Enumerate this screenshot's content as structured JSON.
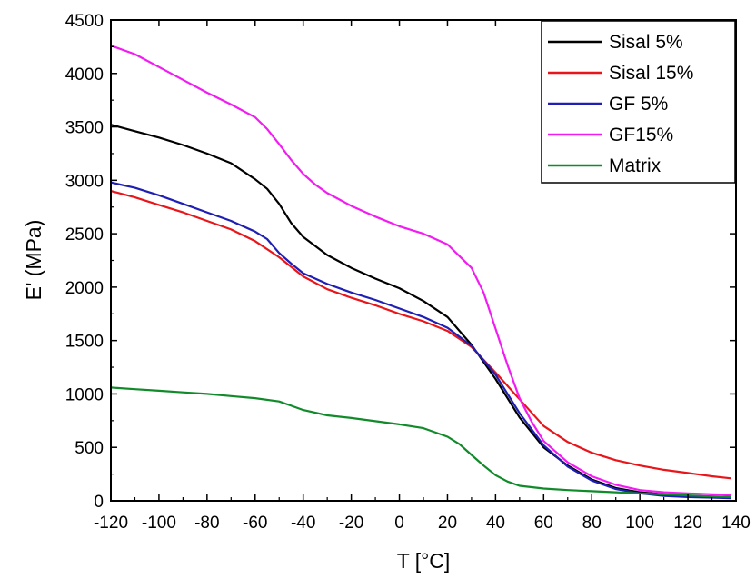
{
  "chart_data": {
    "type": "line",
    "title": "",
    "xlabel": "T [°C]",
    "ylabel": "E' (MPa)",
    "xlim": [
      -120,
      140
    ],
    "ylim": [
      0,
      4500
    ],
    "x_ticks": [
      -120,
      -100,
      -80,
      -60,
      -40,
      -20,
      0,
      20,
      40,
      60,
      80,
      100,
      120,
      140
    ],
    "y_ticks": [
      0,
      500,
      1000,
      1500,
      2000,
      2500,
      3000,
      3500,
      4000,
      4500
    ],
    "grid": false,
    "legend_position": "top-right",
    "series": [
      {
        "name": "Sisal 5%",
        "color": "#000000",
        "points": [
          [
            -120,
            3520
          ],
          [
            -110,
            3460
          ],
          [
            -100,
            3400
          ],
          [
            -90,
            3330
          ],
          [
            -80,
            3250
          ],
          [
            -70,
            3160
          ],
          [
            -60,
            3010
          ],
          [
            -55,
            2920
          ],
          [
            -50,
            2780
          ],
          [
            -45,
            2600
          ],
          [
            -40,
            2470
          ],
          [
            -30,
            2300
          ],
          [
            -20,
            2180
          ],
          [
            -10,
            2080
          ],
          [
            0,
            1990
          ],
          [
            10,
            1870
          ],
          [
            20,
            1720
          ],
          [
            30,
            1460
          ],
          [
            40,
            1140
          ],
          [
            50,
            780
          ],
          [
            60,
            500
          ],
          [
            70,
            330
          ],
          [
            80,
            200
          ],
          [
            90,
            120
          ],
          [
            100,
            80
          ],
          [
            110,
            60
          ],
          [
            120,
            45
          ],
          [
            130,
            40
          ],
          [
            138,
            35
          ]
        ]
      },
      {
        "name": "Sisal 15%",
        "color": "#e8161b",
        "points": [
          [
            -120,
            2900
          ],
          [
            -110,
            2840
          ],
          [
            -100,
            2770
          ],
          [
            -90,
            2700
          ],
          [
            -80,
            2620
          ],
          [
            -70,
            2540
          ],
          [
            -60,
            2430
          ],
          [
            -50,
            2280
          ],
          [
            -40,
            2100
          ],
          [
            -30,
            1980
          ],
          [
            -20,
            1900
          ],
          [
            -10,
            1830
          ],
          [
            0,
            1750
          ],
          [
            10,
            1680
          ],
          [
            20,
            1590
          ],
          [
            30,
            1440
          ],
          [
            40,
            1200
          ],
          [
            50,
            950
          ],
          [
            60,
            700
          ],
          [
            70,
            550
          ],
          [
            80,
            450
          ],
          [
            90,
            380
          ],
          [
            100,
            330
          ],
          [
            110,
            290
          ],
          [
            120,
            260
          ],
          [
            130,
            230
          ],
          [
            138,
            210
          ]
        ]
      },
      {
        "name": "GF 5%",
        "color": "#1f1fb4",
        "points": [
          [
            -120,
            2980
          ],
          [
            -110,
            2930
          ],
          [
            -100,
            2860
          ],
          [
            -90,
            2780
          ],
          [
            -80,
            2700
          ],
          [
            -70,
            2620
          ],
          [
            -60,
            2520
          ],
          [
            -55,
            2450
          ],
          [
            -50,
            2320
          ],
          [
            -45,
            2220
          ],
          [
            -40,
            2130
          ],
          [
            -30,
            2030
          ],
          [
            -20,
            1950
          ],
          [
            -10,
            1880
          ],
          [
            0,
            1800
          ],
          [
            10,
            1720
          ],
          [
            20,
            1620
          ],
          [
            30,
            1450
          ],
          [
            40,
            1180
          ],
          [
            50,
            820
          ],
          [
            60,
            520
          ],
          [
            70,
            320
          ],
          [
            80,
            190
          ],
          [
            90,
            110
          ],
          [
            100,
            70
          ],
          [
            110,
            45
          ],
          [
            120,
            35
          ],
          [
            130,
            30
          ],
          [
            138,
            25
          ]
        ]
      },
      {
        "name": "GF15%",
        "color": "#f21cf2",
        "points": [
          [
            -120,
            4260
          ],
          [
            -110,
            4180
          ],
          [
            -100,
            4060
          ],
          [
            -90,
            3940
          ],
          [
            -80,
            3820
          ],
          [
            -70,
            3710
          ],
          [
            -60,
            3590
          ],
          [
            -55,
            3480
          ],
          [
            -50,
            3340
          ],
          [
            -45,
            3190
          ],
          [
            -40,
            3060
          ],
          [
            -35,
            2960
          ],
          [
            -30,
            2880
          ],
          [
            -20,
            2760
          ],
          [
            -10,
            2660
          ],
          [
            0,
            2570
          ],
          [
            10,
            2500
          ],
          [
            20,
            2400
          ],
          [
            30,
            2180
          ],
          [
            35,
            1950
          ],
          [
            40,
            1610
          ],
          [
            45,
            1270
          ],
          [
            50,
            960
          ],
          [
            55,
            740
          ],
          [
            60,
            560
          ],
          [
            70,
            360
          ],
          [
            80,
            230
          ],
          [
            90,
            150
          ],
          [
            100,
            100
          ],
          [
            110,
            80
          ],
          [
            120,
            70
          ],
          [
            130,
            60
          ],
          [
            138,
            55
          ]
        ]
      },
      {
        "name": "Matrix",
        "color": "#118a2a",
        "points": [
          [
            -120,
            1060
          ],
          [
            -110,
            1045
          ],
          [
            -100,
            1030
          ],
          [
            -90,
            1015
          ],
          [
            -80,
            1000
          ],
          [
            -70,
            980
          ],
          [
            -60,
            960
          ],
          [
            -50,
            930
          ],
          [
            -45,
            890
          ],
          [
            -40,
            850
          ],
          [
            -30,
            800
          ],
          [
            -20,
            775
          ],
          [
            -10,
            745
          ],
          [
            0,
            715
          ],
          [
            10,
            680
          ],
          [
            20,
            600
          ],
          [
            25,
            530
          ],
          [
            30,
            430
          ],
          [
            35,
            330
          ],
          [
            40,
            240
          ],
          [
            45,
            180
          ],
          [
            50,
            140
          ],
          [
            60,
            115
          ],
          [
            70,
            100
          ],
          [
            80,
            90
          ],
          [
            90,
            80
          ],
          [
            100,
            70
          ],
          [
            110,
            60
          ],
          [
            120,
            50
          ],
          [
            130,
            40
          ],
          [
            138,
            35
          ]
        ]
      }
    ]
  }
}
